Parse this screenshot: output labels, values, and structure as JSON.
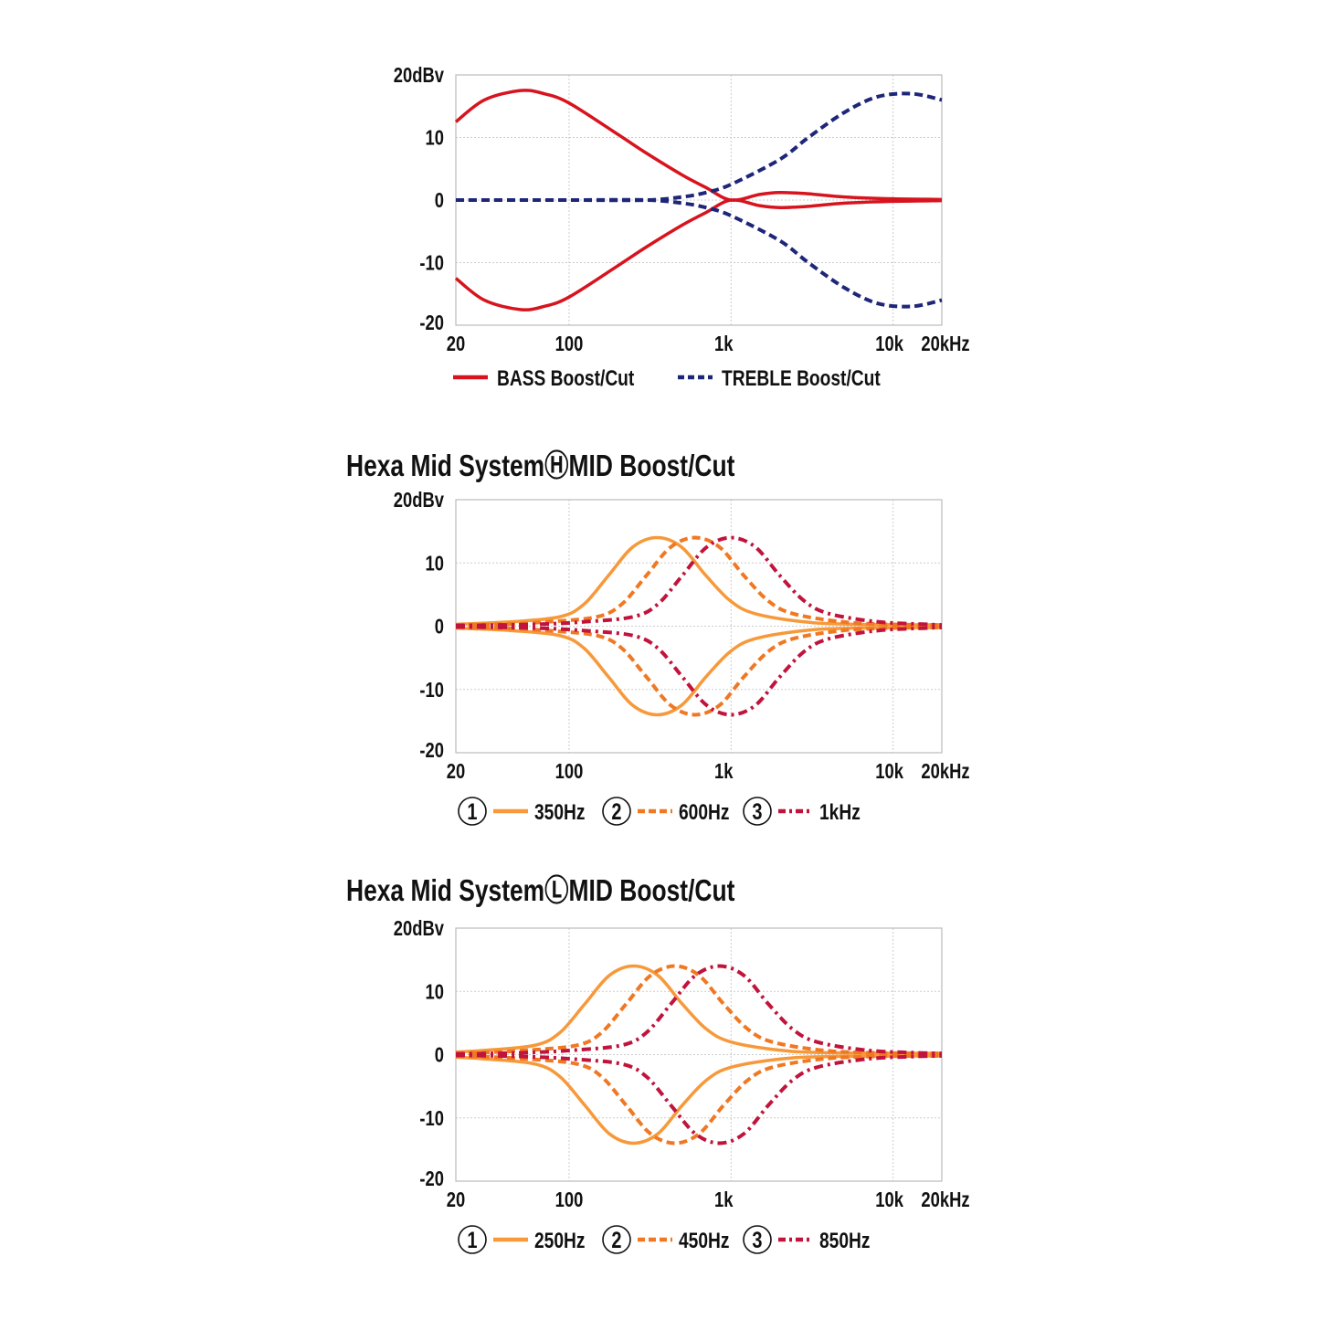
{
  "chart_data": [
    {
      "type": "line",
      "title": "",
      "xscale": "log",
      "xlim": [
        20,
        20000
      ],
      "ylim": [
        -20,
        20
      ],
      "grid": true,
      "xticks": [
        {
          "v": 20,
          "label": "20"
        },
        {
          "v": 100,
          "label": "100"
        },
        {
          "v": 1000,
          "label": "1k"
        },
        {
          "v": 10000,
          "label": "10k"
        },
        {
          "v": 20000,
          "label": "20kHz"
        }
      ],
      "yticks": [
        {
          "v": 20,
          "label": "20dBv"
        },
        {
          "v": 10,
          "label": "10"
        },
        {
          "v": 0,
          "label": "0"
        },
        {
          "v": -10,
          "label": "-10"
        },
        {
          "v": -20,
          "label": "-20"
        }
      ],
      "legend_position": "bottom",
      "series": [
        {
          "name": "BASS Boost/Cut",
          "color": "#d7141e",
          "style": "solid",
          "mirrored_cut": true,
          "x": [
            20,
            30,
            50,
            70,
            100,
            200,
            300,
            500,
            700,
            1000,
            1500,
            2000,
            3000,
            5000,
            10000,
            20000
          ],
          "y": [
            12.5,
            16,
            17.5,
            17,
            15.5,
            10.5,
            7.5,
            4,
            2,
            0,
            0.9,
            1.2,
            1,
            0.5,
            0.2,
            0.1
          ]
        },
        {
          "name": "TREBLE Boost/Cut",
          "color": "#1e2678",
          "style": "dashed",
          "mirrored_cut": true,
          "x": [
            20,
            100,
            300,
            500,
            700,
            1000,
            2000,
            3000,
            5000,
            8000,
            13000,
            20000
          ],
          "y": [
            0,
            0,
            0,
            0.5,
            1.2,
            2.5,
            6.5,
            10,
            14,
            16.5,
            17,
            16
          ]
        }
      ]
    },
    {
      "type": "line",
      "title": "Hexa Mid SystemⒽMID Boost/Cut",
      "xscale": "log",
      "xlim": [
        20,
        20000
      ],
      "ylim": [
        -20,
        20
      ],
      "grid": true,
      "xticks": [
        {
          "v": 20,
          "label": "20"
        },
        {
          "v": 100,
          "label": "100"
        },
        {
          "v": 1000,
          "label": "1k"
        },
        {
          "v": 10000,
          "label": "10k"
        },
        {
          "v": 20000,
          "label": "20kHz"
        }
      ],
      "yticks": [
        {
          "v": 20,
          "label": "20dBv"
        },
        {
          "v": 10,
          "label": "10"
        },
        {
          "v": 0,
          "label": "0"
        },
        {
          "v": -10,
          "label": "-10"
        },
        {
          "v": -20,
          "label": "-20"
        }
      ],
      "legend_position": "bottom",
      "series": [
        {
          "name": "350Hz",
          "number": "1",
          "color": "#f7993a",
          "style": "solid",
          "mirrored_cut": true,
          "x": [
            20,
            44,
            88,
            124,
            175,
            247,
            350,
            495,
            700,
            990,
            1400,
            2800,
            5600,
            20000
          ],
          "y": [
            0.3,
            0.7,
            1.5,
            3.5,
            8,
            12.5,
            14,
            12.5,
            8,
            4,
            2,
            0.7,
            0.3,
            0.2
          ]
        },
        {
          "name": "600Hz",
          "number": "2",
          "color": "#f07823",
          "style": "dashed",
          "mirrored_cut": true,
          "x": [
            20,
            38,
            75,
            150,
            212,
            300,
            424,
            600,
            849,
            1200,
            1697,
            2400,
            4800,
            9600,
            20000
          ],
          "y": [
            0.2,
            0.3,
            0.7,
            1.5,
            3.5,
            8,
            12.5,
            14,
            12.5,
            8,
            4,
            2,
            0.7,
            0.3,
            0.2
          ]
        },
        {
          "name": "1kHz",
          "number": "3",
          "color": "#c0143c",
          "style": "dashdot",
          "mirrored_cut": true,
          "x": [
            20,
            63,
            125,
            250,
            354,
            500,
            707,
            1000,
            1414,
            2000,
            2828,
            4000,
            8000,
            16000,
            20000
          ],
          "y": [
            0.1,
            0.3,
            0.7,
            1.5,
            3.5,
            8,
            12.5,
            14,
            12.5,
            8,
            4,
            2,
            0.7,
            0.3,
            0.2
          ]
        }
      ]
    },
    {
      "type": "line",
      "title": "Hexa Mid SystemⓁMID Boost/Cut",
      "xscale": "log",
      "xlim": [
        20,
        20000
      ],
      "ylim": [
        -20,
        20
      ],
      "grid": true,
      "xticks": [
        {
          "v": 20,
          "label": "20"
        },
        {
          "v": 100,
          "label": "100"
        },
        {
          "v": 1000,
          "label": "1k"
        },
        {
          "v": 10000,
          "label": "10k"
        },
        {
          "v": 20000,
          "label": "20kHz"
        }
      ],
      "yticks": [
        {
          "v": 20,
          "label": "20dBv"
        },
        {
          "v": 10,
          "label": "10"
        },
        {
          "v": 0,
          "label": "0"
        },
        {
          "v": -10,
          "label": "-10"
        },
        {
          "v": -20,
          "label": "-20"
        }
      ],
      "legend_position": "bottom",
      "series": [
        {
          "name": "250Hz",
          "number": "1",
          "color": "#f7993a",
          "style": "solid",
          "mirrored_cut": true,
          "x": [
            20,
            31,
            62,
            88,
            125,
            177,
            250,
            354,
            500,
            707,
            1000,
            2000,
            4000,
            20000
          ],
          "y": [
            0.4,
            0.7,
            1.5,
            3.5,
            8,
            12.5,
            14,
            12.5,
            8,
            4,
            2,
            0.7,
            0.3,
            0.2
          ]
        },
        {
          "name": "450Hz",
          "number": "2",
          "color": "#f07823",
          "style": "dashed",
          "mirrored_cut": true,
          "x": [
            20,
            28,
            56,
            113,
            159,
            225,
            318,
            450,
            636,
            900,
            1273,
            1800,
            3600,
            7200,
            20000
          ],
          "y": [
            0.25,
            0.3,
            0.7,
            1.5,
            3.5,
            8,
            12.5,
            14,
            12.5,
            8,
            4,
            2,
            0.7,
            0.3,
            0.2
          ]
        },
        {
          "name": "850Hz",
          "number": "3",
          "color": "#c0143c",
          "style": "dashdot",
          "mirrored_cut": true,
          "x": [
            20,
            53,
            106,
            213,
            301,
            425,
            601,
            850,
            1202,
            1700,
            2404,
            3400,
            6800,
            13600,
            20000
          ],
          "y": [
            0.1,
            0.3,
            0.7,
            1.5,
            3.5,
            8,
            12.5,
            14,
            12.5,
            8,
            4,
            2,
            0.7,
            0.3,
            0.2
          ]
        }
      ]
    }
  ]
}
